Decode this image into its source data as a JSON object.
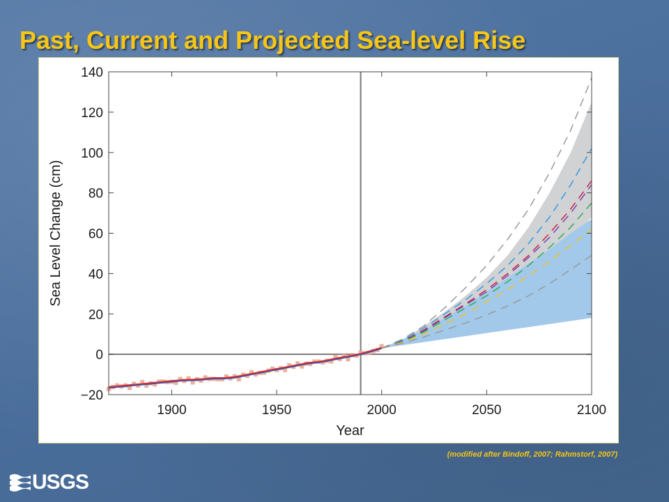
{
  "slide": {
    "title": "Past, Current and Projected Sea-level Rise",
    "source_note": "(modified after Bindoff, 2007; Rahmstorf, 2007)",
    "logo_text": "USGS"
  },
  "colors": {
    "title": "#f5c518",
    "background": "#4a6e9c",
    "projection_range_gray": "#d0d2d4",
    "projection_range_blue": "#a3c9ea",
    "observed_points": "#e8a58c",
    "observed_line_red": "#d8303a",
    "observed_line_blue": "#3a4fa0",
    "axis": "#777777"
  },
  "chart_data": {
    "type": "line",
    "xlabel": "Year",
    "ylabel": "Sea Level Change (cm)",
    "xlim": [
      1870,
      2100
    ],
    "ylim": [
      -20,
      140
    ],
    "xticks": [
      1900,
      1950,
      2000,
      2050,
      2100
    ],
    "yticks": [
      -20,
      0,
      20,
      40,
      60,
      80,
      100,
      120,
      140
    ],
    "reference_lines": {
      "vertical_x": 1990,
      "horizontal_y": 0
    },
    "observed": {
      "x": [
        1870,
        1875,
        1880,
        1885,
        1890,
        1895,
        1900,
        1905,
        1910,
        1915,
        1920,
        1925,
        1930,
        1935,
        1940,
        1945,
        1950,
        1955,
        1960,
        1965,
        1970,
        1975,
        1980,
        1985,
        1990,
        1995,
        2000
      ],
      "y": [
        -16.5,
        -16,
        -15.5,
        -15,
        -14.5,
        -14,
        -13.5,
        -13,
        -12.8,
        -12.5,
        -12,
        -12,
        -11.5,
        -10.5,
        -9.5,
        -8.5,
        -7.5,
        -6.5,
        -5.5,
        -4.5,
        -4,
        -3,
        -2,
        -1,
        0,
        1.5,
        3
      ]
    },
    "projection_envelope_gray": {
      "x": [
        2000,
        2010,
        2020,
        2030,
        2040,
        2050,
        2060,
        2070,
        2080,
        2090,
        2100
      ],
      "lower": [
        3,
        5,
        8,
        12,
        17,
        23,
        30,
        38,
        46,
        56,
        68
      ],
      "upper": [
        3,
        7,
        14,
        21,
        29,
        38,
        49,
        63,
        80,
        100,
        125
      ]
    },
    "projection_envelope_blue": {
      "x": [
        2000,
        2010,
        2020,
        2030,
        2040,
        2050,
        2060,
        2070,
        2080,
        2090,
        2100
      ],
      "lower": [
        3,
        4.5,
        6,
        7.5,
        9,
        10.5,
        12,
        13.5,
        15,
        16.5,
        18
      ],
      "upper": [
        3,
        7.5,
        12,
        18,
        24,
        31,
        38,
        45,
        52,
        60,
        67
      ]
    },
    "series": [
      {
        "color": "#999999",
        "x": [
          2000,
          2010,
          2020,
          2030,
          2040,
          2050,
          2060,
          2070,
          2080,
          2090,
          2100
        ],
        "y": [
          3,
          7.5,
          14,
          23,
          33,
          44,
          57,
          72,
          90,
          111,
          137
        ]
      },
      {
        "color": "#3399dd",
        "x": [
          2000,
          2010,
          2020,
          2030,
          2040,
          2050,
          2060,
          2070,
          2080,
          2090,
          2100
        ],
        "y": [
          3,
          7,
          13,
          20,
          27,
          35,
          44,
          55,
          68,
          84,
          102
        ]
      },
      {
        "color": "#cc2244",
        "x": [
          2000,
          2010,
          2020,
          2030,
          2040,
          2050,
          2060,
          2070,
          2080,
          2090,
          2100
        ],
        "y": [
          3,
          6.5,
          12,
          18.5,
          25,
          32,
          40,
          49,
          60,
          72,
          86
        ]
      },
      {
        "color": "#7744aa",
        "x": [
          2000,
          2010,
          2020,
          2030,
          2040,
          2050,
          2060,
          2070,
          2080,
          2090,
          2100
        ],
        "y": [
          3,
          6.5,
          11.5,
          18,
          24.5,
          31,
          39,
          48,
          58,
          70,
          84
        ]
      },
      {
        "color": "#33aa55",
        "x": [
          2000,
          2010,
          2020,
          2030,
          2040,
          2050,
          2060,
          2070,
          2080,
          2090,
          2100
        ],
        "y": [
          3,
          6.2,
          11,
          17,
          23,
          29,
          36,
          44,
          53,
          63,
          75
        ]
      },
      {
        "color": "#f0c020",
        "x": [
          2000,
          2010,
          2020,
          2030,
          2040,
          2050,
          2060,
          2070,
          2080,
          2090,
          2100
        ],
        "y": [
          3,
          6,
          10,
          15,
          20,
          26,
          32,
          39,
          46,
          54,
          62
        ]
      },
      {
        "color": "#999999",
        "x": [
          2000,
          2010,
          2020,
          2030,
          2040,
          2050,
          2060,
          2070,
          2080,
          2090,
          2100
        ],
        "y": [
          3,
          5.5,
          8.5,
          12,
          15.5,
          19.5,
          24,
          29,
          35,
          42,
          49
        ]
      }
    ]
  }
}
